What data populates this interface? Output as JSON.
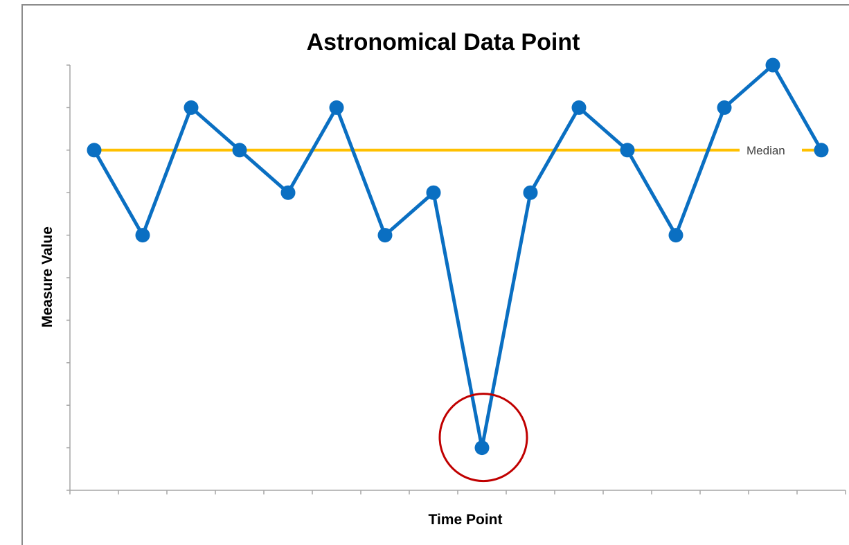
{
  "chart_data": {
    "type": "line",
    "title": "Astronomical Data Point",
    "xlabel": "Time Point",
    "ylabel": "Measure Value",
    "x": [
      1,
      2,
      3,
      4,
      5,
      6,
      7,
      8,
      9,
      10,
      11,
      12,
      13,
      14,
      15,
      16
    ],
    "xlim": [
      0.5,
      16.5
    ],
    "ylim": [
      0,
      10
    ],
    "series": [
      {
        "values": [
          8,
          6,
          9,
          8,
          7,
          9,
          6,
          7,
          1,
          7,
          9,
          8,
          6,
          9,
          10,
          8
        ]
      }
    ],
    "reference_lines": [
      {
        "label": "Median",
        "value": 8
      }
    ],
    "highlight": {
      "x": 9,
      "y": 1,
      "shape": "circle"
    },
    "y_tick_labels_shown": false,
    "x_tick_labels_shown": false,
    "grid": false,
    "legend": "none",
    "colors": {
      "series": "#0a6fc2",
      "median": "#ffc000",
      "highlight": "#c00000",
      "axis": "#a6a6a6"
    }
  }
}
